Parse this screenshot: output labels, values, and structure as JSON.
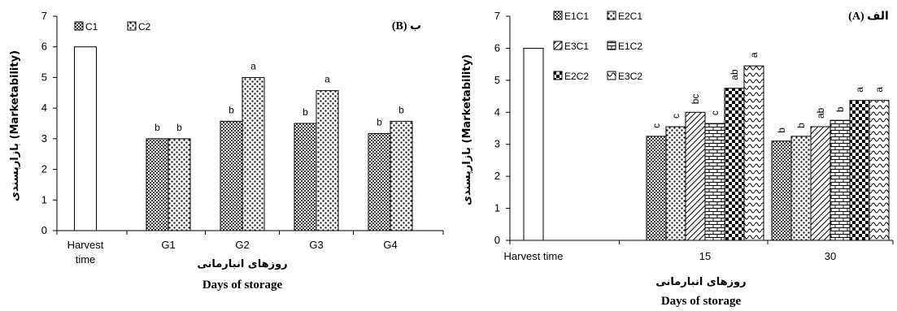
{
  "chart_data": [
    {
      "type": "bar",
      "title": "ب (B)",
      "ylabel": "بازارپسندی (Marketability)",
      "xlabel_fa": "روزهای انبارمانی",
      "xlabel_en": "Days of storage",
      "ylim": [
        0,
        7
      ],
      "yticks": [
        "0",
        "1",
        "2",
        "3",
        "4",
        "5",
        "6",
        "7"
      ],
      "grid": false,
      "legend_position": "top-left",
      "categories": [
        "Harvest time",
        "G1",
        "G2",
        "G3",
        "G4"
      ],
      "categories_display": [
        [
          "Harvest",
          "time"
        ],
        [
          "G1"
        ],
        [
          "G2"
        ],
        [
          "G3"
        ],
        [
          "G4"
        ]
      ],
      "harvest_value": 6,
      "series": [
        {
          "name": "C1",
          "pattern": "dots-dense",
          "values": [
            null,
            3.0,
            3.57,
            3.5,
            3.17
          ],
          "labels": [
            "",
            "b",
            "b",
            "b",
            "b"
          ]
        },
        {
          "name": "C2",
          "pattern": "dots-coarse",
          "values": [
            null,
            3.0,
            5.0,
            4.57,
            3.57
          ],
          "labels": [
            "",
            "b",
            "a",
            "a",
            "b"
          ]
        }
      ]
    },
    {
      "type": "bar",
      "title": "الف (A)",
      "ylabel": "بازارپسندی (Marketability)",
      "xlabel_fa": "روزهای انبارمانی",
      "xlabel_en": "Days of storage",
      "ylim": [
        0,
        7
      ],
      "yticks": [
        "0",
        "1",
        "2",
        "3",
        "4",
        "5",
        "6",
        "7"
      ],
      "grid": false,
      "legend_position": "top-left",
      "categories": [
        "Harvest time",
        "15",
        "30"
      ],
      "harvest_value": 6,
      "series": [
        {
          "name": "E1C1",
          "pattern": "dots-dense",
          "values": [
            null,
            3.25,
            3.1
          ],
          "labels": [
            "",
            "c",
            "b"
          ]
        },
        {
          "name": "E2C1",
          "pattern": "dots-coarse",
          "values": [
            null,
            3.55,
            3.25
          ],
          "labels": [
            "",
            "c",
            "b"
          ]
        },
        {
          "name": "E3C1",
          "pattern": "diag",
          "values": [
            null,
            4.0,
            3.55
          ],
          "labels": [
            "",
            "bc",
            "ab"
          ]
        },
        {
          "name": "E1C2",
          "pattern": "brick",
          "values": [
            null,
            3.65,
            3.75
          ],
          "labels": [
            "",
            "c",
            "b"
          ]
        },
        {
          "name": "E2C2",
          "pattern": "checker",
          "values": [
            null,
            4.75,
            4.37
          ],
          "labels": [
            "",
            "ab",
            "a"
          ]
        },
        {
          "name": "E3C2",
          "pattern": "waves",
          "values": [
            null,
            5.45,
            4.37
          ],
          "labels": [
            "",
            "a",
            "a"
          ]
        }
      ]
    }
  ],
  "colors": {
    "axis": "#000000",
    "bar_stroke": "#000000",
    "bar_fill_harvest": "#ffffff"
  }
}
